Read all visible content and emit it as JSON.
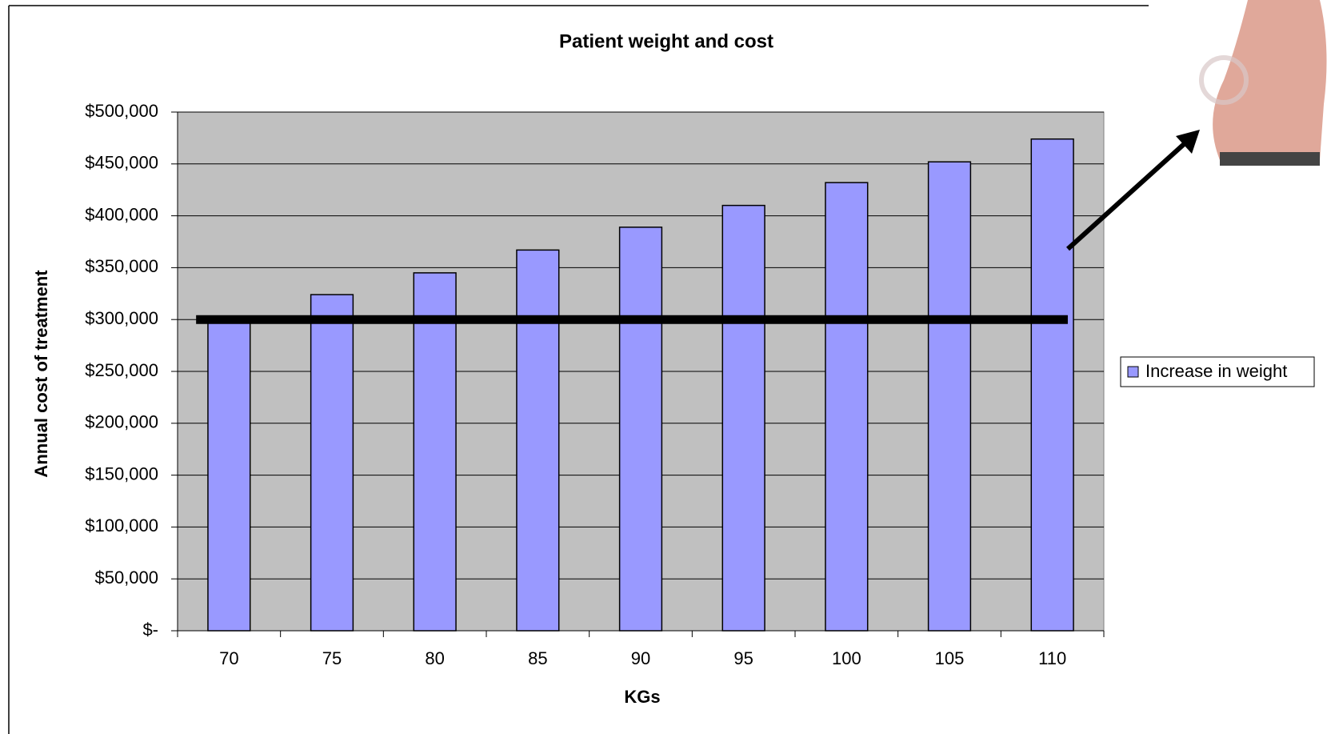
{
  "chart_data": {
    "type": "bar",
    "title": "Patient weight and cost",
    "x_label": "KGs",
    "y_label": "Annual cost of treatment",
    "categories": [
      "70",
      "75",
      "80",
      "85",
      "90",
      "95",
      "100",
      "105",
      "110"
    ],
    "series": [
      {
        "name": "Increase in weight",
        "color": "#9999ff",
        "values": [
          302000,
          324000,
          345000,
          367000,
          389000,
          410000,
          432000,
          452000,
          474000
        ]
      }
    ],
    "reference_line": 300000,
    "ylim": [
      0,
      500000
    ],
    "yticks": [
      {
        "value": 0,
        "label": "$-"
      },
      {
        "value": 50000,
        "label": "$50,000"
      },
      {
        "value": 100000,
        "label": "$100,000"
      },
      {
        "value": 150000,
        "label": "$150,000"
      },
      {
        "value": 200000,
        "label": "$200,000"
      },
      {
        "value": 250000,
        "label": "$250,000"
      },
      {
        "value": 300000,
        "label": "$300,000"
      },
      {
        "value": 350000,
        "label": "$350,000"
      },
      {
        "value": 400000,
        "label": "$400,000"
      },
      {
        "value": 450000,
        "label": "$450,000"
      },
      {
        "value": 500000,
        "label": "$500,000"
      }
    ],
    "grid": true,
    "legend": "right"
  }
}
